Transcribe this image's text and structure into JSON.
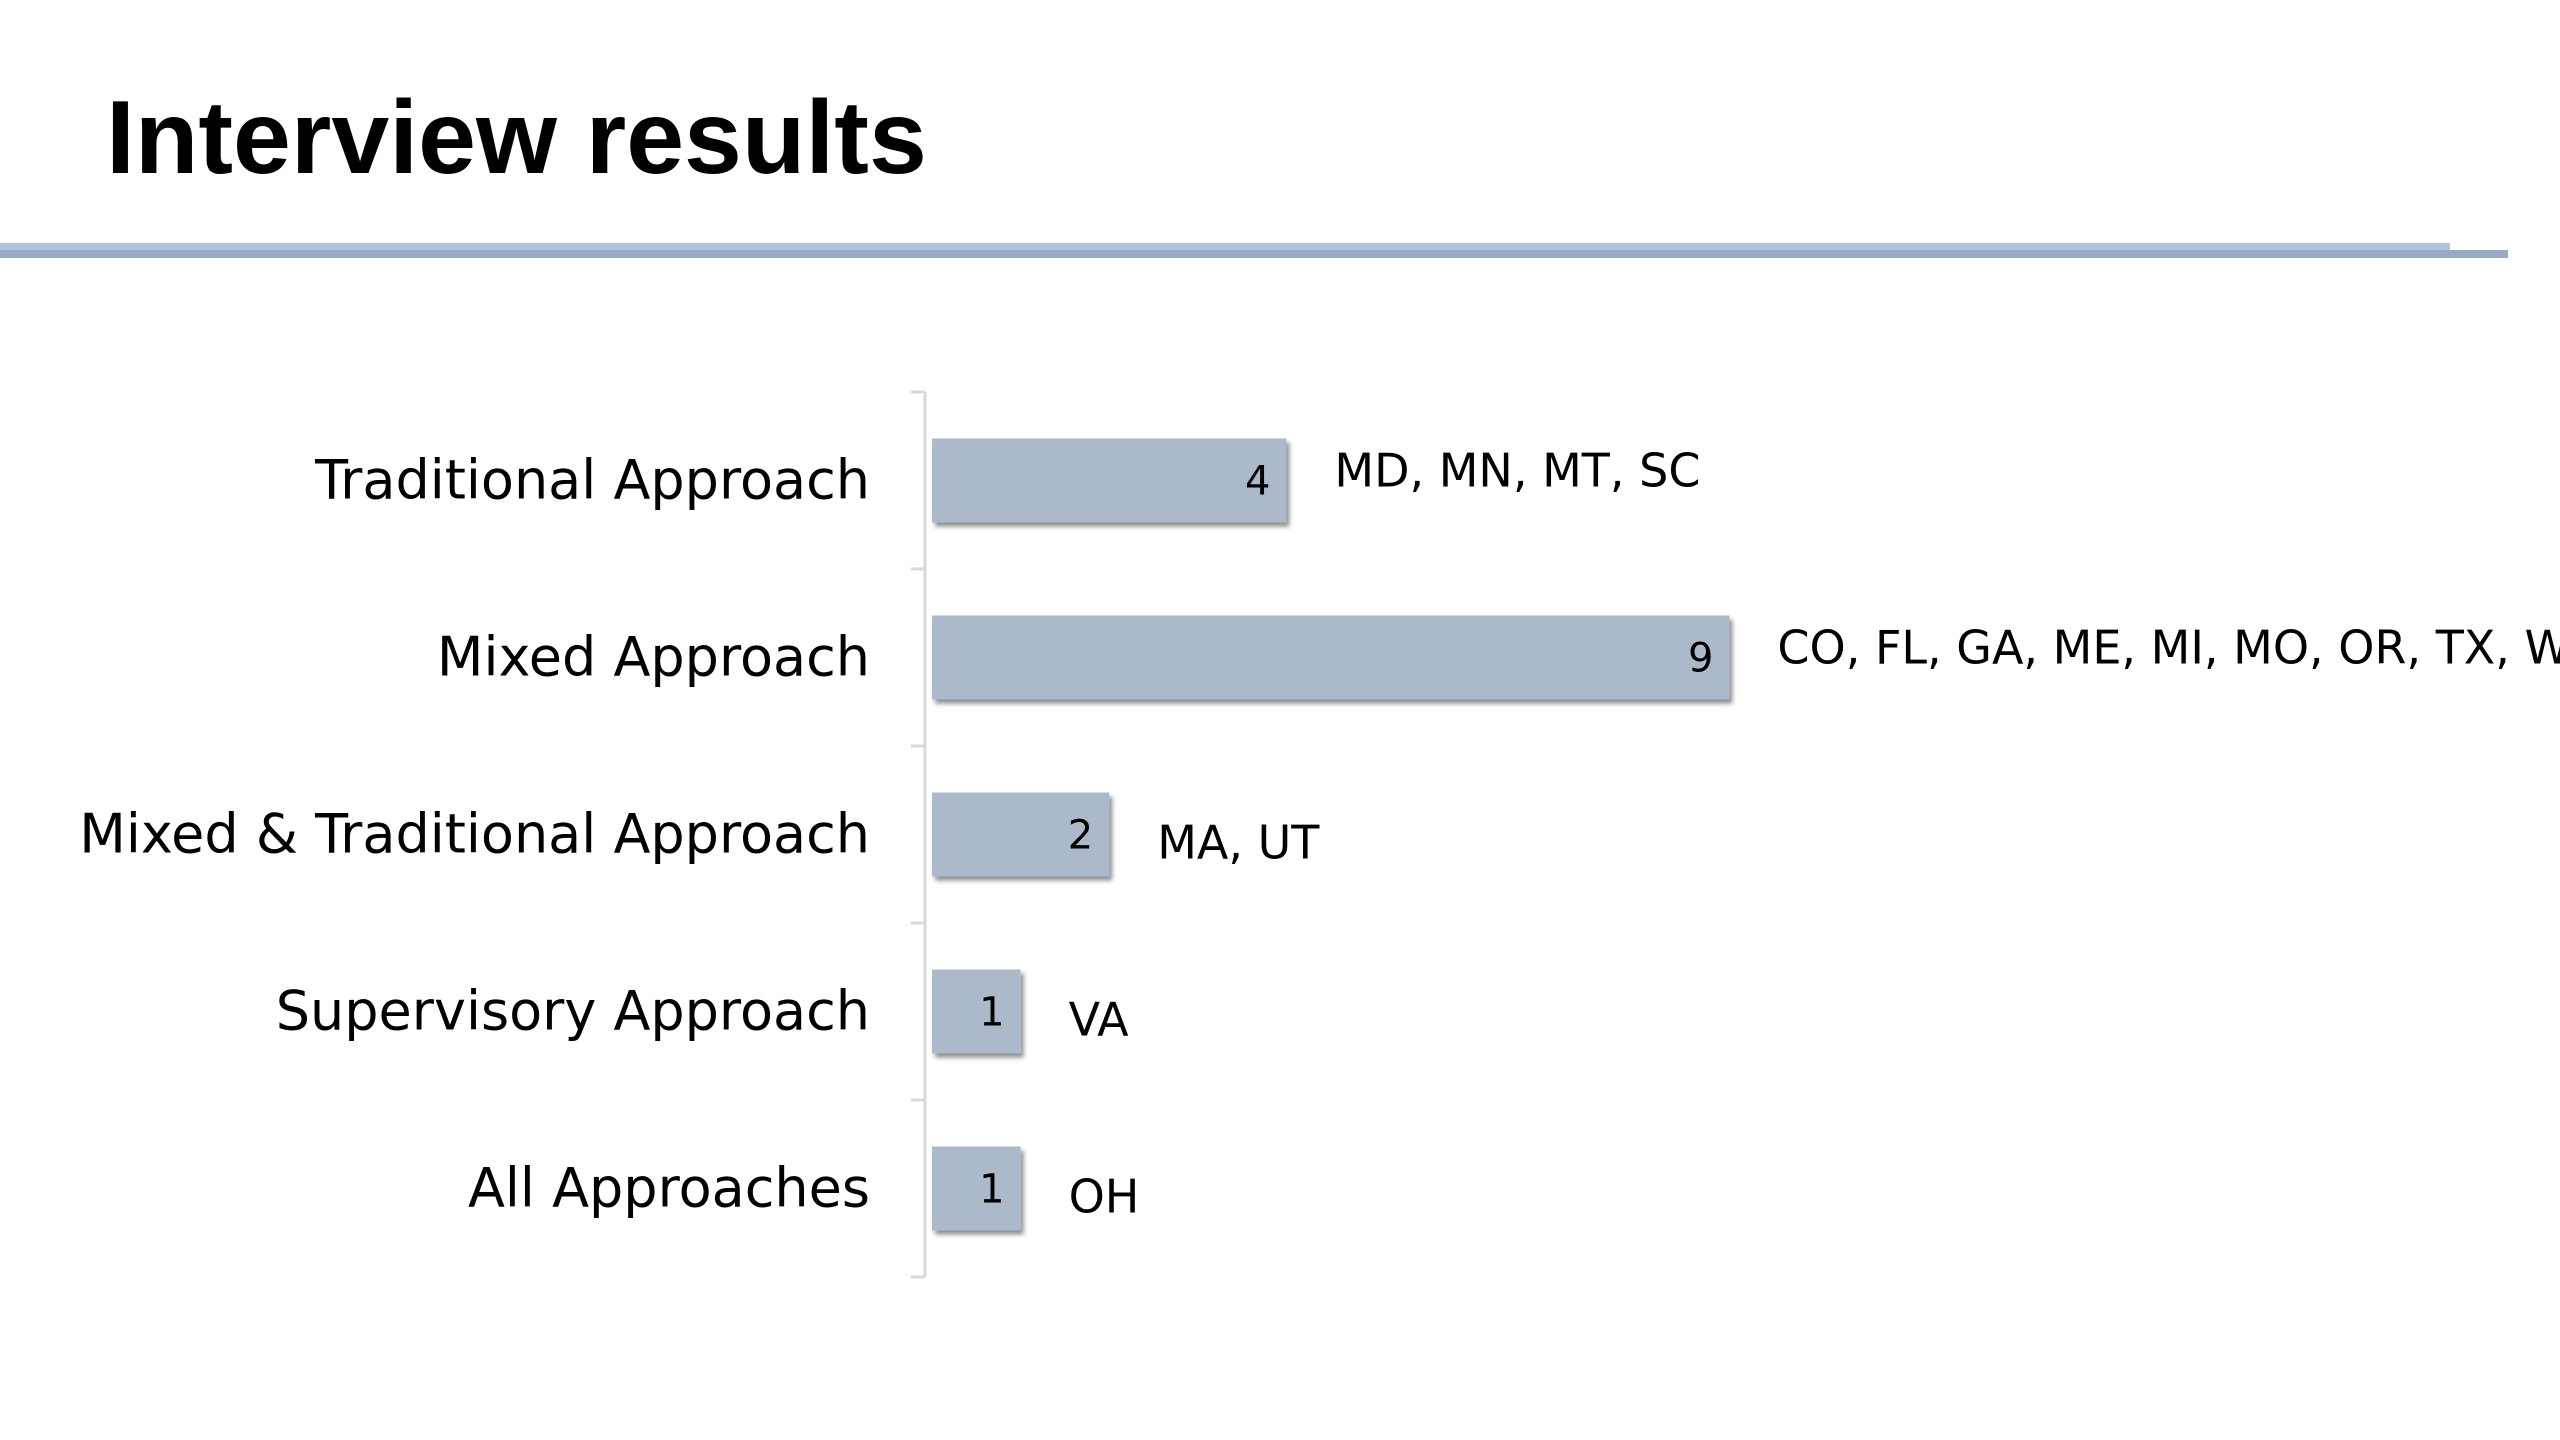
{
  "slide": {
    "title": "Interview results"
  },
  "colors": {
    "bar_fill": "#acb9cb",
    "bar_shadow": "#7d889a",
    "axis": "#d9d9d9",
    "title_rule": "#b3c3df"
  },
  "chart_data": {
    "type": "bar",
    "orientation": "horizontal",
    "title": "",
    "xlabel": "",
    "ylabel": "",
    "categories": [
      "Traditional Approach",
      "Mixed Approach",
      "Mixed & Traditional Approach",
      "Supervisory Approach",
      "All Approaches"
    ],
    "values": [
      4,
      9,
      2,
      1,
      1
    ],
    "data_labels": [
      "4",
      "9",
      "2",
      "1",
      "1"
    ],
    "annotations": [
      "MD, MN, MT, SC",
      "CO, FL, GA, ME, MI, MO, OR, TX, WS",
      "MA, UT",
      "VA",
      "OH"
    ],
    "xlim": [
      0,
      9
    ],
    "grid": false,
    "legend": "none"
  }
}
